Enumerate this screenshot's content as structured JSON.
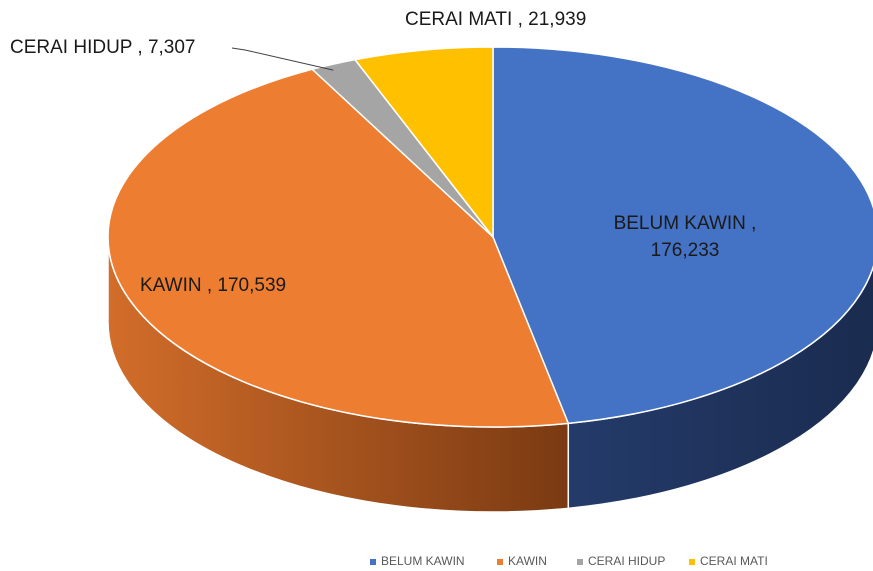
{
  "chart_data": {
    "type": "pie",
    "categories": [
      "BELUM KAWIN",
      "KAWIN",
      "CERAI HIDUP",
      "CERAI MATI"
    ],
    "values": [
      176233,
      170539,
      7307,
      21939
    ],
    "value_labels": [
      "BELUM KAWIN , 176,233",
      "KAWIN , 170,539",
      "CERAI HIDUP , 7,307",
      "CERAI MATI , 21,939"
    ],
    "colors": [
      "#4472c4",
      "#ed7d31",
      "#a5a5a5",
      "#ffc000"
    ],
    "legend": "bottom"
  }
}
